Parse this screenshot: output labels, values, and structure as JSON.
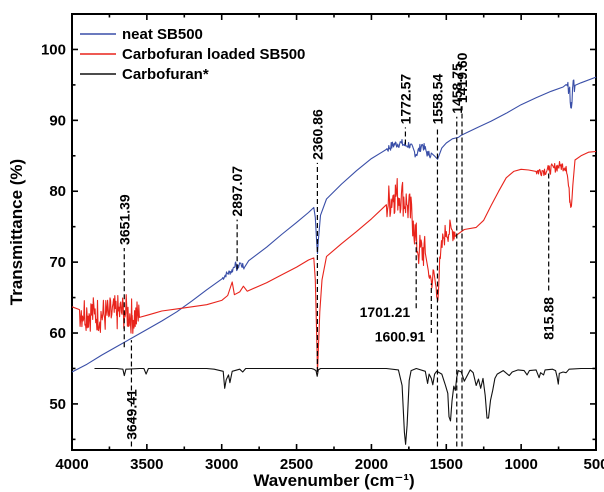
{
  "chart_data": {
    "type": "line",
    "xlabel": "Wavenumber (cm⁻¹)",
    "ylabel": "Transmittance (%)",
    "xlim": [
      4000,
      500
    ],
    "ylim": [
      43.5,
      105
    ],
    "x_reversed": true,
    "x_ticks": [
      4000,
      3500,
      3000,
      2500,
      2000,
      1500,
      1000,
      500
    ],
    "x_tick_labels": [
      "4000",
      "3500",
      "3000",
      "2500",
      "2000",
      "1500",
      "1000",
      "500"
    ],
    "y_ticks": [
      50,
      60,
      70,
      80,
      90,
      100
    ],
    "y_tick_labels": [
      "50",
      "60",
      "70",
      "80",
      "90",
      "100"
    ],
    "grid": false,
    "legend_position": "top-left",
    "series": [
      {
        "name": "neat SB500",
        "color": "#3a4fa8",
        "noise": [
          [
            3000,
            2850,
            0.4
          ],
          [
            1900,
            1600,
            0.6
          ],
          [
            700,
            640,
            1.2
          ]
        ],
        "points": [
          [
            4000,
            54.5
          ],
          [
            3900,
            55.6
          ],
          [
            3800,
            56.9
          ],
          [
            3700,
            58.1
          ],
          [
            3600,
            59.3
          ],
          [
            3500,
            60.5
          ],
          [
            3400,
            61.7
          ],
          [
            3300,
            63.0
          ],
          [
            3200,
            64.5
          ],
          [
            3100,
            66.1
          ],
          [
            3000,
            67.6
          ],
          [
            2970,
            68.3
          ],
          [
            2930,
            68.8
          ],
          [
            2910,
            69.8
          ],
          [
            2897,
            68.9
          ],
          [
            2880,
            69.9
          ],
          [
            2850,
            69.2
          ],
          [
            2820,
            70.2
          ],
          [
            2700,
            72.1
          ],
          [
            2600,
            73.9
          ],
          [
            2500,
            75.6
          ],
          [
            2420,
            77.0
          ],
          [
            2385,
            77.7
          ],
          [
            2375,
            76.3
          ],
          [
            2365,
            72.5
          ],
          [
            2360,
            71.2
          ],
          [
            2355,
            73.0
          ],
          [
            2340,
            76.6
          ],
          [
            2300,
            78.9
          ],
          [
            2200,
            81.0
          ],
          [
            2100,
            82.9
          ],
          [
            2000,
            84.6
          ],
          [
            1900,
            85.9
          ],
          [
            1850,
            86.6
          ],
          [
            1800,
            86.8
          ],
          [
            1772,
            86.4
          ],
          [
            1750,
            86.6
          ],
          [
            1701,
            85.2
          ],
          [
            1660,
            86.6
          ],
          [
            1620,
            85.1
          ],
          [
            1600,
            85.4
          ],
          [
            1580,
            85.0
          ],
          [
            1558,
            84.5
          ],
          [
            1530,
            86.1
          ],
          [
            1500,
            86.8
          ],
          [
            1459,
            87.4
          ],
          [
            1420,
            87.6
          ],
          [
            1400,
            87.9
          ],
          [
            1300,
            88.9
          ],
          [
            1200,
            89.9
          ],
          [
            1100,
            91.0
          ],
          [
            1000,
            92.2
          ],
          [
            900,
            93.2
          ],
          [
            800,
            94.1
          ],
          [
            720,
            94.7
          ],
          [
            680,
            94.4
          ],
          [
            665,
            92.5
          ],
          [
            655,
            94.8
          ],
          [
            600,
            95.3
          ],
          [
            500,
            96.1
          ]
        ]
      },
      {
        "name": "Carbofuran loaded SB500",
        "color": "#e8241c",
        "noise": [
          [
            3950,
            3550,
            2.6
          ],
          [
            1900,
            1640,
            2.8
          ],
          [
            1620,
            1440,
            1.6
          ],
          [
            900,
            660,
            0.7
          ]
        ],
        "points": [
          [
            4000,
            63.7
          ],
          [
            3950,
            63.3
          ],
          [
            3900,
            62.9
          ],
          [
            3850,
            62.7
          ],
          [
            3800,
            62.5
          ],
          [
            3750,
            62.5
          ],
          [
            3700,
            62.8
          ],
          [
            3650,
            63.0
          ],
          [
            3600,
            62.4
          ],
          [
            3550,
            62.2
          ],
          [
            3500,
            62.5
          ],
          [
            3450,
            62.8
          ],
          [
            3400,
            63.1
          ],
          [
            3300,
            63.4
          ],
          [
            3200,
            63.7
          ],
          [
            3100,
            64.0
          ],
          [
            3000,
            64.6
          ],
          [
            2960,
            65.3
          ],
          [
            2930,
            67.2
          ],
          [
            2915,
            65.4
          ],
          [
            2880,
            65.8
          ],
          [
            2855,
            66.6
          ],
          [
            2830,
            65.9
          ],
          [
            2700,
            67.1
          ],
          [
            2600,
            68.2
          ],
          [
            2500,
            69.3
          ],
          [
            2420,
            70.3
          ],
          [
            2385,
            70.6
          ],
          [
            2375,
            67.5
          ],
          [
            2365,
            59.0
          ],
          [
            2360,
            54.5
          ],
          [
            2355,
            57.5
          ],
          [
            2345,
            63.0
          ],
          [
            2330,
            67.5
          ],
          [
            2300,
            70.8
          ],
          [
            2200,
            72.6
          ],
          [
            2100,
            74.3
          ],
          [
            2000,
            76.1
          ],
          [
            1950,
            77.1
          ],
          [
            1900,
            78.1
          ],
          [
            1850,
            79.5
          ],
          [
            1800,
            79.6
          ],
          [
            1760,
            78.0
          ],
          [
            1720,
            75.8
          ],
          [
            1701,
            73.0
          ],
          [
            1680,
            71.4
          ],
          [
            1650,
            71.6
          ],
          [
            1620,
            68.8
          ],
          [
            1600,
            67.4
          ],
          [
            1580,
            68.2
          ],
          [
            1560,
            64.8
          ],
          [
            1540,
            70.5
          ],
          [
            1520,
            73.4
          ],
          [
            1500,
            74.3
          ],
          [
            1460,
            74.5
          ],
          [
            1420,
            74.0
          ],
          [
            1380,
            74.6
          ],
          [
            1300,
            74.9
          ],
          [
            1250,
            75.9
          ],
          [
            1200,
            78.0
          ],
          [
            1150,
            80.0
          ],
          [
            1100,
            81.9
          ],
          [
            1050,
            82.8
          ],
          [
            1000,
            83.1
          ],
          [
            950,
            83.0
          ],
          [
            900,
            82.8
          ],
          [
            860,
            82.9
          ],
          [
            816,
            83.0
          ],
          [
            780,
            83.3
          ],
          [
            740,
            83.6
          ],
          [
            700,
            83.5
          ],
          [
            690,
            82.0
          ],
          [
            675,
            78.8
          ],
          [
            665,
            78.1
          ],
          [
            655,
            80.8
          ],
          [
            640,
            84.4
          ],
          [
            600,
            85.0
          ],
          [
            550,
            85.5
          ],
          [
            500,
            85.6
          ]
        ]
      },
      {
        "name": "Carbofuran*",
        "color": "#111111",
        "noise": [],
        "points": [
          [
            3850,
            55.0
          ],
          [
            3700,
            55.0
          ],
          [
            3660,
            54.9
          ],
          [
            3651,
            54.0
          ],
          [
            3640,
            54.9
          ],
          [
            3550,
            55.0
          ],
          [
            3520,
            55.0
          ],
          [
            3505,
            54.2
          ],
          [
            3490,
            55.0
          ],
          [
            3100,
            55.0
          ],
          [
            3050,
            54.9
          ],
          [
            2990,
            54.6
          ],
          [
            2980,
            52.2
          ],
          [
            2970,
            53.4
          ],
          [
            2955,
            54.1
          ],
          [
            2945,
            53.0
          ],
          [
            2930,
            54.6
          ],
          [
            2880,
            54.9
          ],
          [
            2860,
            54.5
          ],
          [
            2840,
            55.0
          ],
          [
            2400,
            55.0
          ],
          [
            2385,
            54.9
          ],
          [
            2370,
            54.7
          ],
          [
            2362,
            53.9
          ],
          [
            2355,
            54.8
          ],
          [
            2340,
            55.0
          ],
          [
            1900,
            55.0
          ],
          [
            1820,
            54.8
          ],
          [
            1795,
            52.6
          ],
          [
            1780,
            46.0
          ],
          [
            1772,
            44.3
          ],
          [
            1762,
            47.0
          ],
          [
            1748,
            53.3
          ],
          [
            1735,
            54.7
          ],
          [
            1700,
            55.0
          ],
          [
            1640,
            54.6
          ],
          [
            1625,
            52.9
          ],
          [
            1615,
            54.2
          ],
          [
            1600,
            53.6
          ],
          [
            1590,
            52.7
          ],
          [
            1578,
            54.2
          ],
          [
            1565,
            54.6
          ],
          [
            1555,
            54.5
          ],
          [
            1530,
            54.2
          ],
          [
            1505,
            52.6
          ],
          [
            1490,
            51.5
          ],
          [
            1482,
            48.2
          ],
          [
            1472,
            47.6
          ],
          [
            1462,
            50.4
          ],
          [
            1450,
            52.5
          ],
          [
            1440,
            51.9
          ],
          [
            1430,
            53.8
          ],
          [
            1420,
            54.7
          ],
          [
            1400,
            54.5
          ],
          [
            1380,
            53.2
          ],
          [
            1365,
            53.8
          ],
          [
            1340,
            54.8
          ],
          [
            1320,
            54.4
          ],
          [
            1300,
            52.6
          ],
          [
            1285,
            53.5
          ],
          [
            1270,
            52.2
          ],
          [
            1255,
            53.6
          ],
          [
            1240,
            51.2
          ],
          [
            1228,
            48.0
          ],
          [
            1218,
            48.0
          ],
          [
            1205,
            50.5
          ],
          [
            1190,
            51.9
          ],
          [
            1175,
            53.6
          ],
          [
            1160,
            54.2
          ],
          [
            1120,
            54.7
          ],
          [
            1080,
            54.0
          ],
          [
            1060,
            54.5
          ],
          [
            1020,
            54.8
          ],
          [
            980,
            54.7
          ],
          [
            960,
            54.1
          ],
          [
            945,
            54.7
          ],
          [
            900,
            54.8
          ],
          [
            880,
            53.7
          ],
          [
            870,
            54.4
          ],
          [
            850,
            54.1
          ],
          [
            840,
            54.8
          ],
          [
            790,
            54.9
          ],
          [
            770,
            54.7
          ],
          [
            760,
            53.8
          ],
          [
            752,
            52.8
          ],
          [
            745,
            54.3
          ],
          [
            720,
            54.5
          ],
          [
            700,
            54.4
          ],
          [
            680,
            54.9
          ],
          [
            600,
            55.0
          ],
          [
            500,
            55.0
          ]
        ]
      }
    ],
    "annotations": [
      {
        "label": "3651.39",
        "x": 3651,
        "y_from": 58.0,
        "y_to": 72.0,
        "label_side": "above",
        "anchor_y": 72.0
      },
      {
        "label": "2897.07",
        "x": 2897,
        "y_from": 69.0,
        "y_to": 76.0,
        "label_side": "above",
        "anchor_y": 76.0
      },
      {
        "label": "2360.86",
        "x": 2361,
        "y_from": 54.5,
        "y_to": 84.0,
        "label_side": "above",
        "anchor_y": 84.0
      },
      {
        "label": "1772.57",
        "x": 1773,
        "y_from": 86.6,
        "y_to": 89.0,
        "label_side": "above",
        "anchor_y": 89.0
      },
      {
        "label": "1558.54",
        "x": 1559,
        "y_from": 44.0,
        "y_to": 89.0,
        "label_side": "above",
        "anchor_y": 89.0
      },
      {
        "label": "1458.75",
        "x": 1430,
        "y_from": 44.0,
        "y_to": 90.5,
        "label_side": "above",
        "anchor_y": 90.5
      },
      {
        "label": "1419.60",
        "x": 1395,
        "y_from": 44.0,
        "y_to": 92.0,
        "label_side": "above",
        "anchor_y": 92.0
      },
      {
        "label": "3649.41",
        "x": 3603,
        "y_from": 44.0,
        "y_to": 59.0,
        "label_side": "below",
        "anchor_y": 52.5
      },
      {
        "label": "1701.21",
        "x": 1701,
        "y_from": 63.5,
        "y_to": 72.8,
        "label_side": "left",
        "anchor_y": 63.0
      },
      {
        "label": "1600.91",
        "x": 1600,
        "y_from": 60.0,
        "y_to": 67.0,
        "label_side": "left",
        "anchor_y": 59.5
      },
      {
        "label": "815.88",
        "x": 816,
        "y_from": 66.0,
        "y_to": 82.8,
        "label_side": "below",
        "anchor_y": 65.5
      }
    ]
  }
}
